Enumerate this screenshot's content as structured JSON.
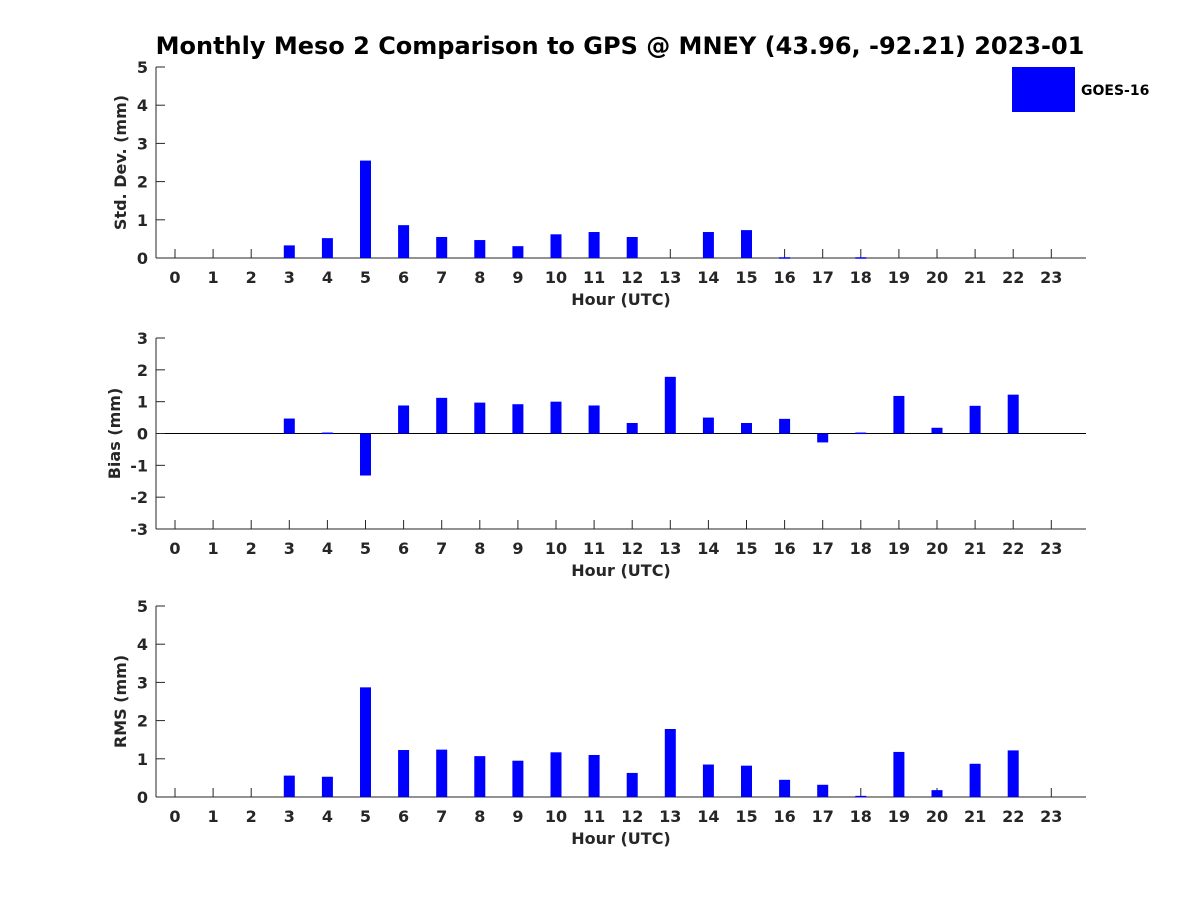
{
  "title": "Monthly Meso 2 Comparison to GPS @ MNEY (43.96, -92.21) 2023-01",
  "legend": {
    "label": "GOES-16",
    "color": "#0000ff",
    "placement": "top-right"
  },
  "colors": {
    "bar": "#0000ff",
    "axis": "#262626"
  },
  "chart_data": [
    {
      "type": "bar",
      "name": "std",
      "ylabel": "Std. Dev. (mm)",
      "xlabel": "Hour (UTC)",
      "ylim": [
        0,
        5
      ],
      "yticks": [
        0,
        1,
        2,
        3,
        4,
        5
      ],
      "categories": [
        "0",
        "1",
        "2",
        "3",
        "4",
        "5",
        "6",
        "7",
        "8",
        "9",
        "10",
        "11",
        "12",
        "13",
        "14",
        "15",
        "16",
        "17",
        "18",
        "19",
        "20",
        "21",
        "22",
        "23"
      ],
      "values": [
        null,
        null,
        null,
        0.33,
        0.52,
        2.55,
        0.86,
        0.55,
        0.47,
        0.31,
        0.62,
        0.68,
        0.55,
        null,
        0.68,
        0.73,
        0.02,
        null,
        0.02,
        null,
        null,
        null,
        null,
        null
      ],
      "grid": false
    },
    {
      "type": "bar",
      "name": "bias",
      "ylabel": "Bias (mm)",
      "xlabel": "Hour (UTC)",
      "ylim": [
        -3,
        3
      ],
      "yticks": [
        -3,
        -2,
        -1,
        0,
        1,
        2,
        3
      ],
      "categories": [
        "0",
        "1",
        "2",
        "3",
        "4",
        "5",
        "6",
        "7",
        "8",
        "9",
        "10",
        "11",
        "12",
        "13",
        "14",
        "15",
        "16",
        "17",
        "18",
        "19",
        "20",
        "21",
        "22",
        "23"
      ],
      "values": [
        null,
        null,
        null,
        0.47,
        0.03,
        -1.32,
        0.88,
        1.12,
        0.97,
        0.92,
        1.0,
        0.88,
        0.33,
        1.78,
        0.5,
        0.33,
        0.46,
        -0.28,
        0.03,
        1.18,
        0.18,
        0.87,
        1.22,
        null
      ],
      "zero_line": true,
      "grid": false
    },
    {
      "type": "bar",
      "name": "rms",
      "ylabel": "RMS (mm)",
      "xlabel": "Hour (UTC)",
      "ylim": [
        0,
        5
      ],
      "yticks": [
        0,
        1,
        2,
        3,
        4,
        5
      ],
      "categories": [
        "0",
        "1",
        "2",
        "3",
        "4",
        "5",
        "6",
        "7",
        "8",
        "9",
        "10",
        "11",
        "12",
        "13",
        "14",
        "15",
        "16",
        "17",
        "18",
        "19",
        "20",
        "21",
        "22",
        "23"
      ],
      "values": [
        null,
        null,
        null,
        0.56,
        0.53,
        2.87,
        1.23,
        1.24,
        1.07,
        0.95,
        1.17,
        1.1,
        0.63,
        1.78,
        0.85,
        0.82,
        0.45,
        0.32,
        0.03,
        1.18,
        0.18,
        0.87,
        1.22,
        null
      ],
      "grid": false
    }
  ]
}
